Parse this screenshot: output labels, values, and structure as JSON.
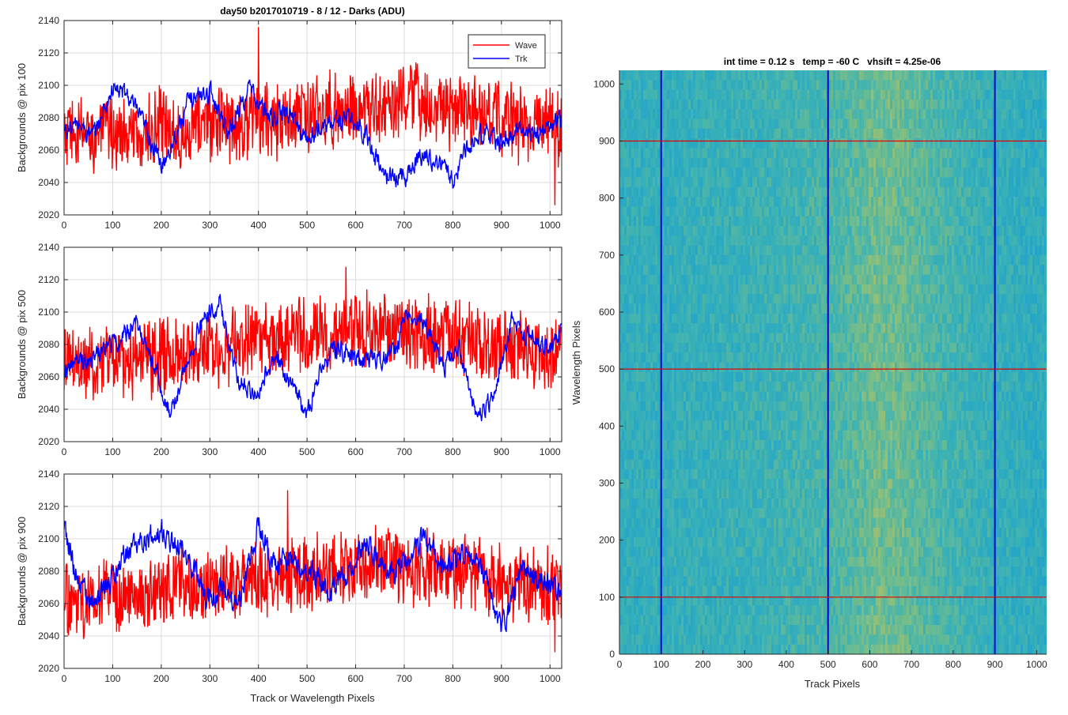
{
  "chart_data": [
    {
      "type": "line",
      "title": "day50 b2017010719 - 8 / 12 - Darks (ADU)",
      "ylabel": "Backgrounds @ pix 100",
      "xlabel": "",
      "xlim": [
        0,
        1024
      ],
      "ylim": [
        2020,
        2140
      ],
      "xticks": [
        0,
        100,
        200,
        300,
        400,
        500,
        600,
        700,
        800,
        900,
        1000
      ],
      "yticks": [
        2020,
        2040,
        2060,
        2080,
        2100,
        2120,
        2140
      ],
      "grid": true,
      "legend": "top-right",
      "series": [
        {
          "name": "Wave",
          "color": "#ff0000",
          "x": [
            0,
            50,
            100,
            150,
            200,
            250,
            300,
            350,
            400,
            450,
            500,
            550,
            600,
            650,
            700,
            750,
            800,
            850,
            900,
            950,
            1000,
            1024
          ],
          "values": [
            2068,
            2070,
            2072,
            2068,
            2074,
            2072,
            2078,
            2076,
            2080,
            2078,
            2082,
            2084,
            2086,
            2084,
            2090,
            2088,
            2084,
            2082,
            2080,
            2076,
            2074,
            2074
          ],
          "spread": 20,
          "spikes": [
            [
              400,
              2136
            ],
            [
              1010,
              2026
            ]
          ]
        },
        {
          "name": "Trk",
          "color": "#0000ff",
          "x": [
            0,
            30,
            60,
            100,
            130,
            170,
            200,
            230,
            260,
            300,
            340,
            380,
            420,
            460,
            500,
            540,
            580,
            620,
            660,
            700,
            740,
            780,
            800,
            830,
            860,
            900,
            940,
            980,
            1024
          ],
          "values": [
            2072,
            2076,
            2068,
            2098,
            2094,
            2072,
            2050,
            2070,
            2092,
            2096,
            2072,
            2098,
            2080,
            2084,
            2066,
            2076,
            2080,
            2070,
            2044,
            2044,
            2058,
            2050,
            2042,
            2062,
            2072,
            2064,
            2072,
            2070,
            2080
          ],
          "spread": 5
        }
      ]
    },
    {
      "type": "line",
      "title": "",
      "ylabel": "Backgrounds @ pix 500",
      "xlabel": "",
      "xlim": [
        0,
        1024
      ],
      "ylim": [
        2020,
        2140
      ],
      "xticks": [
        0,
        100,
        200,
        300,
        400,
        500,
        600,
        700,
        800,
        900,
        1000
      ],
      "yticks": [
        2020,
        2040,
        2060,
        2080,
        2100,
        2120,
        2140
      ],
      "grid": true,
      "series": [
        {
          "name": "Wave",
          "color": "#ff0000",
          "x": [
            0,
            50,
            100,
            150,
            200,
            250,
            300,
            350,
            400,
            450,
            500,
            550,
            600,
            650,
            700,
            750,
            800,
            850,
            900,
            950,
            1000,
            1024
          ],
          "values": [
            2070,
            2068,
            2072,
            2070,
            2074,
            2076,
            2078,
            2080,
            2084,
            2086,
            2088,
            2086,
            2090,
            2088,
            2090,
            2088,
            2084,
            2082,
            2080,
            2078,
            2076,
            2076
          ],
          "spread": 20,
          "spikes": [
            [
              580,
              2128
            ]
          ]
        },
        {
          "name": "Trk",
          "color": "#0000ff",
          "x": [
            0,
            40,
            80,
            110,
            150,
            180,
            220,
            250,
            280,
            320,
            360,
            400,
            430,
            460,
            500,
            540,
            570,
            600,
            640,
            680,
            710,
            740,
            780,
            810,
            850,
            880,
            920,
            960,
            1000,
            1024
          ],
          "values": [
            2066,
            2070,
            2076,
            2082,
            2094,
            2072,
            2036,
            2066,
            2092,
            2106,
            2056,
            2052,
            2072,
            2060,
            2036,
            2074,
            2078,
            2070,
            2070,
            2076,
            2100,
            2094,
            2064,
            2080,
            2036,
            2046,
            2094,
            2084,
            2078,
            2090
          ],
          "spread": 5
        }
      ]
    },
    {
      "type": "line",
      "title": "",
      "ylabel": "Backgrounds @ pix 900",
      "xlabel": "Track or Wavelength Pixels",
      "xlim": [
        0,
        1024
      ],
      "ylim": [
        2020,
        2140
      ],
      "xticks": [
        0,
        100,
        200,
        300,
        400,
        500,
        600,
        700,
        800,
        900,
        1000
      ],
      "yticks": [
        2020,
        2040,
        2060,
        2080,
        2100,
        2120,
        2140
      ],
      "grid": true,
      "series": [
        {
          "name": "Wave",
          "color": "#ff0000",
          "x": [
            0,
            50,
            100,
            150,
            200,
            250,
            300,
            350,
            400,
            450,
            500,
            550,
            600,
            650,
            700,
            750,
            800,
            850,
            900,
            950,
            1000,
            1024
          ],
          "values": [
            2064,
            2060,
            2066,
            2064,
            2068,
            2070,
            2068,
            2072,
            2076,
            2074,
            2080,
            2082,
            2084,
            2086,
            2084,
            2082,
            2080,
            2078,
            2074,
            2072,
            2070,
            2072
          ],
          "spread": 20,
          "spikes": [
            [
              460,
              2130
            ],
            [
              1010,
              2030
            ]
          ]
        },
        {
          "name": "Trk",
          "color": "#0000ff",
          "x": [
            0,
            25,
            60,
            90,
            120,
            160,
            190,
            220,
            260,
            290,
            320,
            360,
            400,
            430,
            460,
            500,
            540,
            580,
            620,
            660,
            700,
            740,
            780,
            820,
            860,
            900,
            940,
            980,
            1024
          ],
          "values": [
            2106,
            2078,
            2060,
            2070,
            2090,
            2096,
            2106,
            2100,
            2086,
            2064,
            2068,
            2060,
            2110,
            2082,
            2090,
            2082,
            2070,
            2074,
            2100,
            2080,
            2084,
            2100,
            2086,
            2090,
            2082,
            2044,
            2080,
            2074,
            2070
          ],
          "spread": 6
        }
      ]
    },
    {
      "type": "heatmap",
      "title": "int time = 0.12 s   temp = -60 C   vhsift = 4.25e-06",
      "xlabel": "Track Pixels",
      "ylabel": "Wavelength Pixels",
      "xlim": [
        0,
        1024
      ],
      "ylim": [
        0,
        1024
      ],
      "xticks": [
        0,
        100,
        200,
        300,
        400,
        500,
        600,
        700,
        800,
        900,
        1000
      ],
      "yticks": [
        0,
        100,
        200,
        300,
        400,
        500,
        600,
        700,
        800,
        900,
        1000
      ],
      "colormap": [
        "#1f8fd8",
        "#25a6c7",
        "#3cb2b5",
        "#6fbc8e",
        "#b7c263"
      ],
      "column_profile": {
        "x": [
          0,
          120,
          250,
          350,
          450,
          500,
          560,
          620,
          680,
          760,
          850,
          950,
          1024
        ],
        "values": [
          0.4,
          0.42,
          0.44,
          0.47,
          0.52,
          0.55,
          0.63,
          0.74,
          0.7,
          0.58,
          0.46,
          0.4,
          0.36
        ]
      },
      "bad_columns": [
        100,
        500,
        900
      ],
      "bad_column_color": "#0000c8",
      "marker_rows": [
        100,
        500,
        900
      ],
      "marker_row_color": "#e00000"
    }
  ]
}
